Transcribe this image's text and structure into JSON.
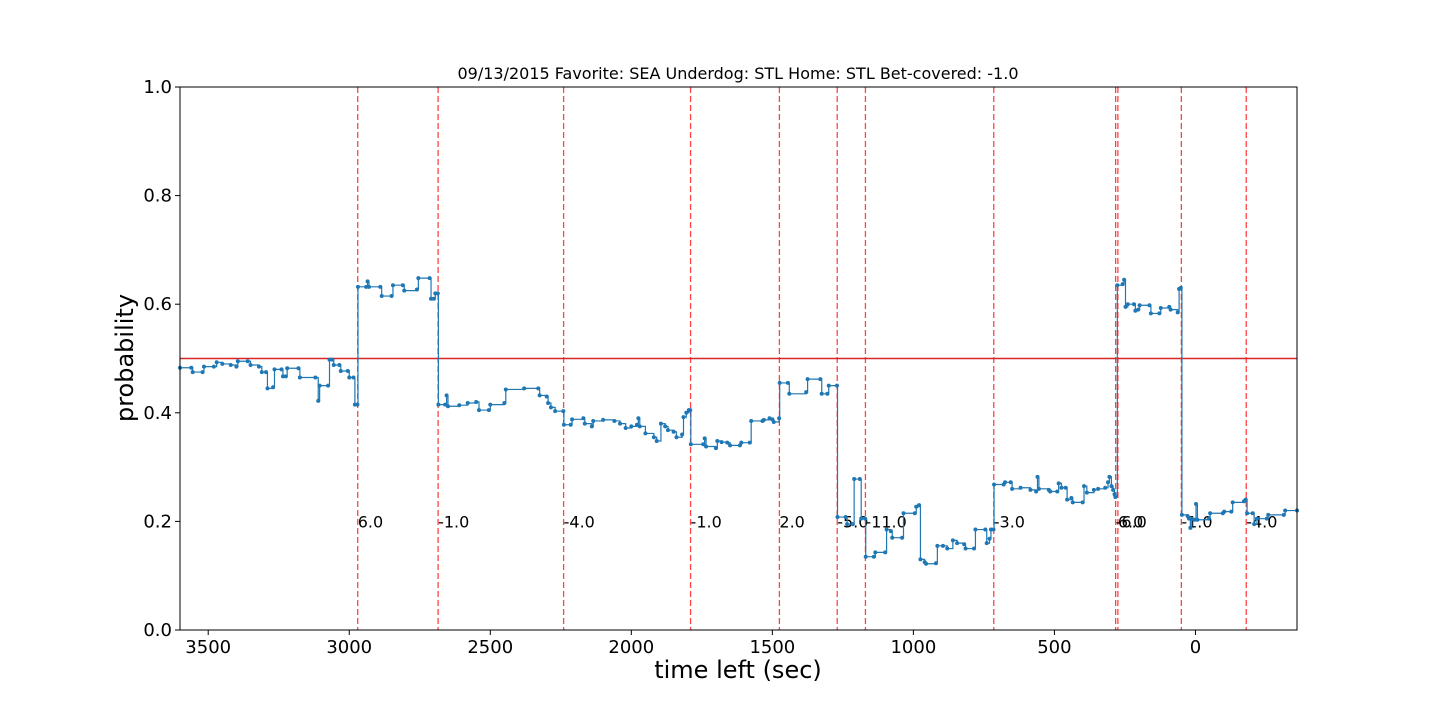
{
  "chart_data": {
    "type": "line",
    "title": "09/13/2015 Favorite: SEA Underdog: STL Home: STL Bet-covered: -1.0",
    "xlabel": "time left (sec)",
    "ylabel": "probability",
    "xlim": [
      3600,
      -360
    ],
    "ylim": [
      0.0,
      1.0
    ],
    "x_ticks": [
      3500,
      3000,
      2500,
      2000,
      1500,
      1000,
      500,
      0
    ],
    "y_ticks": [
      "0.0",
      "0.2",
      "0.4",
      "0.6",
      "0.8",
      "1.0"
    ],
    "grid": false,
    "reference_line": {
      "y": 0.5,
      "color": "#d62728"
    },
    "line_color": "#1f77b4",
    "event_color": "#ff4444",
    "events": [
      {
        "x": 2970,
        "label": "6.0"
      },
      {
        "x": 2685,
        "label": "-1.0"
      },
      {
        "x": 2240,
        "label": "-4.0"
      },
      {
        "x": 1790,
        "label": "-1.0"
      },
      {
        "x": 1475,
        "label": "2.0"
      },
      {
        "x": 1270,
        "label": "-5.0"
      },
      {
        "x": 1170,
        "label": "-11.0"
      },
      {
        "x": 715,
        "label": "-3.0"
      },
      {
        "x": 283,
        "label": "-6.0"
      },
      {
        "x": 275,
        "label": "6.0"
      },
      {
        "x": 50,
        "label": "-1.0"
      },
      {
        "x": -180,
        "label": "-4.0"
      }
    ],
    "series": [
      {
        "points": [
          [
            3600,
            0.483
          ],
          [
            3560,
            0.483
          ],
          [
            3555,
            0.475
          ],
          [
            3520,
            0.475
          ],
          [
            3515,
            0.485
          ],
          [
            3480,
            0.485
          ],
          [
            3470,
            0.493
          ],
          [
            3450,
            0.49
          ],
          [
            3420,
            0.488
          ],
          [
            3400,
            0.485
          ],
          [
            3395,
            0.495
          ],
          [
            3360,
            0.495
          ],
          [
            3350,
            0.488
          ],
          [
            3320,
            0.485
          ],
          [
            3310,
            0.475
          ],
          [
            3295,
            0.475
          ],
          [
            3290,
            0.445
          ],
          [
            3270,
            0.447
          ],
          [
            3265,
            0.48
          ],
          [
            3240,
            0.48
          ],
          [
            3235,
            0.467
          ],
          [
            3225,
            0.467
          ],
          [
            3220,
            0.482
          ],
          [
            3180,
            0.482
          ],
          [
            3175,
            0.465
          ],
          [
            3120,
            0.465
          ],
          [
            3110,
            0.422
          ],
          [
            3105,
            0.45
          ],
          [
            3075,
            0.45
          ],
          [
            3070,
            0.498
          ],
          [
            3060,
            0.498
          ],
          [
            3055,
            0.488
          ],
          [
            3035,
            0.488
          ],
          [
            3030,
            0.477
          ],
          [
            3005,
            0.477
          ],
          [
            3000,
            0.465
          ],
          [
            2985,
            0.465
          ],
          [
            2980,
            0.415
          ],
          [
            2971,
            0.415
          ],
          [
            2969,
            0.632
          ],
          [
            2940,
            0.632
          ],
          [
            2935,
            0.642
          ],
          [
            2930,
            0.632
          ],
          [
            2890,
            0.632
          ],
          [
            2885,
            0.615
          ],
          [
            2850,
            0.615
          ],
          [
            2845,
            0.635
          ],
          [
            2810,
            0.635
          ],
          [
            2805,
            0.625
          ],
          [
            2760,
            0.627
          ],
          [
            2755,
            0.648
          ],
          [
            2715,
            0.648
          ],
          [
            2710,
            0.61
          ],
          [
            2700,
            0.61
          ],
          [
            2695,
            0.62
          ],
          [
            2686,
            0.62
          ],
          [
            2684,
            0.415
          ],
          [
            2660,
            0.415
          ],
          [
            2655,
            0.432
          ],
          [
            2650,
            0.412
          ],
          [
            2610,
            0.414
          ],
          [
            2580,
            0.418
          ],
          [
            2550,
            0.42
          ],
          [
            2540,
            0.405
          ],
          [
            2505,
            0.405
          ],
          [
            2500,
            0.415
          ],
          [
            2450,
            0.418
          ],
          [
            2445,
            0.443
          ],
          [
            2380,
            0.445
          ],
          [
            2330,
            0.445
          ],
          [
            2325,
            0.432
          ],
          [
            2300,
            0.43
          ],
          [
            2295,
            0.418
          ],
          [
            2285,
            0.41
          ],
          [
            2270,
            0.403
          ],
          [
            2241,
            0.403
          ],
          [
            2239,
            0.378
          ],
          [
            2215,
            0.378
          ],
          [
            2210,
            0.388
          ],
          [
            2170,
            0.39
          ],
          [
            2165,
            0.38
          ],
          [
            2140,
            0.375
          ],
          [
            2135,
            0.385
          ],
          [
            2100,
            0.387
          ],
          [
            2060,
            0.385
          ],
          [
            2040,
            0.38
          ],
          [
            2020,
            0.372
          ],
          [
            2000,
            0.375
          ],
          [
            1980,
            0.378
          ],
          [
            1975,
            0.39
          ],
          [
            1970,
            0.375
          ],
          [
            1950,
            0.362
          ],
          [
            1920,
            0.355
          ],
          [
            1910,
            0.348
          ],
          [
            1895,
            0.38
          ],
          [
            1880,
            0.375
          ],
          [
            1870,
            0.368
          ],
          [
            1850,
            0.365
          ],
          [
            1840,
            0.355
          ],
          [
            1820,
            0.36
          ],
          [
            1815,
            0.392
          ],
          [
            1805,
            0.4
          ],
          [
            1796,
            0.405
          ],
          [
            1791,
            0.405
          ],
          [
            1789,
            0.342
          ],
          [
            1745,
            0.342
          ],
          [
            1740,
            0.353
          ],
          [
            1735,
            0.338
          ],
          [
            1700,
            0.335
          ],
          [
            1695,
            0.348
          ],
          [
            1680,
            0.346
          ],
          [
            1660,
            0.345
          ],
          [
            1650,
            0.34
          ],
          [
            1615,
            0.34
          ],
          [
            1610,
            0.345
          ],
          [
            1580,
            0.345
          ],
          [
            1575,
            0.385
          ],
          [
            1535,
            0.385
          ],
          [
            1530,
            0.387
          ],
          [
            1510,
            0.39
          ],
          [
            1500,
            0.388
          ],
          [
            1495,
            0.383
          ],
          [
            1476,
            0.39
          ],
          [
            1474,
            0.455
          ],
          [
            1445,
            0.455
          ],
          [
            1440,
            0.435
          ],
          [
            1380,
            0.438
          ],
          [
            1375,
            0.462
          ],
          [
            1330,
            0.462
          ],
          [
            1325,
            0.435
          ],
          [
            1305,
            0.435
          ],
          [
            1300,
            0.45
          ],
          [
            1271,
            0.45
          ],
          [
            1269,
            0.208
          ],
          [
            1240,
            0.208
          ],
          [
            1235,
            0.195
          ],
          [
            1215,
            0.195
          ],
          [
            1210,
            0.278
          ],
          [
            1190,
            0.278
          ],
          [
            1185,
            0.205
          ],
          [
            1171,
            0.205
          ],
          [
            1169,
            0.135
          ],
          [
            1140,
            0.135
          ],
          [
            1135,
            0.143
          ],
          [
            1100,
            0.143
          ],
          [
            1095,
            0.185
          ],
          [
            1080,
            0.182
          ],
          [
            1075,
            0.17
          ],
          [
            1040,
            0.17
          ],
          [
            1035,
            0.215
          ],
          [
            995,
            0.215
          ],
          [
            990,
            0.227
          ],
          [
            980,
            0.23
          ],
          [
            975,
            0.13
          ],
          [
            960,
            0.125
          ],
          [
            955,
            0.122
          ],
          [
            920,
            0.123
          ],
          [
            915,
            0.155
          ],
          [
            895,
            0.155
          ],
          [
            880,
            0.15
          ],
          [
            860,
            0.165
          ],
          [
            845,
            0.16
          ],
          [
            820,
            0.158
          ],
          [
            815,
            0.15
          ],
          [
            785,
            0.15
          ],
          [
            780,
            0.185
          ],
          [
            745,
            0.185
          ],
          [
            740,
            0.16
          ],
          [
            730,
            0.168
          ],
          [
            725,
            0.185
          ],
          [
            716,
            0.185
          ],
          [
            714,
            0.268
          ],
          [
            680,
            0.268
          ],
          [
            675,
            0.272
          ],
          [
            655,
            0.272
          ],
          [
            650,
            0.26
          ],
          [
            620,
            0.262
          ],
          [
            585,
            0.258
          ],
          [
            565,
            0.255
          ],
          [
            560,
            0.282
          ],
          [
            555,
            0.26
          ],
          [
            520,
            0.258
          ],
          [
            515,
            0.255
          ],
          [
            490,
            0.255
          ],
          [
            485,
            0.27
          ],
          [
            475,
            0.262
          ],
          [
            460,
            0.262
          ],
          [
            455,
            0.24
          ],
          [
            440,
            0.243
          ],
          [
            435,
            0.235
          ],
          [
            400,
            0.235
          ],
          [
            395,
            0.265
          ],
          [
            385,
            0.253
          ],
          [
            360,
            0.258
          ],
          [
            345,
            0.26
          ],
          [
            320,
            0.262
          ],
          [
            310,
            0.272
          ],
          [
            305,
            0.282
          ],
          [
            298,
            0.265
          ],
          [
            292,
            0.258
          ],
          [
            287,
            0.25
          ],
          [
            284,
            0.245
          ],
          [
            277,
            0.635
          ],
          [
            258,
            0.637
          ],
          [
            253,
            0.645
          ],
          [
            248,
            0.595
          ],
          [
            240,
            0.6
          ],
          [
            218,
            0.6
          ],
          [
            213,
            0.588
          ],
          [
            203,
            0.59
          ],
          [
            198,
            0.598
          ],
          [
            163,
            0.598
          ],
          [
            158,
            0.583
          ],
          [
            128,
            0.583
          ],
          [
            123,
            0.593
          ],
          [
            93,
            0.595
          ],
          [
            88,
            0.59
          ],
          [
            63,
            0.585
          ],
          [
            58,
            0.628
          ],
          [
            52,
            0.63
          ],
          [
            48,
            0.212
          ],
          [
            28,
            0.21
          ],
          [
            23,
            0.205
          ],
          [
            18,
            0.188
          ],
          [
            13,
            0.205
          ],
          [
            3,
            0.203
          ],
          [
            -2,
            0.232
          ],
          [
            -7,
            0.203
          ],
          [
            -47,
            0.205
          ],
          [
            -52,
            0.215
          ],
          [
            -97,
            0.215
          ],
          [
            -102,
            0.218
          ],
          [
            -127,
            0.218
          ],
          [
            -132,
            0.235
          ],
          [
            -172,
            0.237
          ],
          [
            -178,
            0.24
          ],
          [
            -183,
            0.215
          ],
          [
            -203,
            0.215
          ],
          [
            -208,
            0.195
          ],
          [
            -218,
            0.205
          ],
          [
            -253,
            0.205
          ],
          [
            -258,
            0.212
          ],
          [
            -313,
            0.212
          ],
          [
            -318,
            0.22
          ],
          [
            -360,
            0.22
          ]
        ]
      }
    ]
  }
}
